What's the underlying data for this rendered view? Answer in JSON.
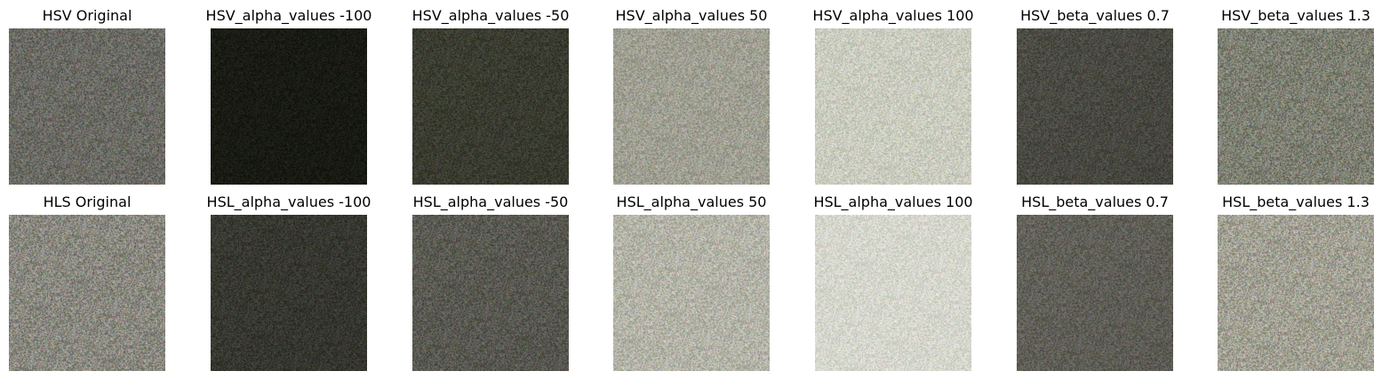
{
  "rows": [
    {
      "panels": [
        {
          "title": "HSV Original",
          "base": [
            107,
            107,
            100
          ],
          "spread": 34,
          "fade": 0.0
        },
        {
          "title": "HSV_alpha_values -100",
          "base": [
            26,
            28,
            20
          ],
          "spread": 14,
          "fade": 0.25
        },
        {
          "title": "HSV_alpha_values -50",
          "base": [
            60,
            62,
            50
          ],
          "spread": 22,
          "fade": 0.2
        },
        {
          "title": "HSV_alpha_values 50",
          "base": [
            160,
            160,
            147
          ],
          "spread": 32,
          "fade": 0.0
        },
        {
          "title": "HSV_alpha_values 100",
          "base": [
            203,
            205,
            192
          ],
          "spread": 28,
          "fade": 0.0
        },
        {
          "title": "HSV_beta_values 0.7",
          "base": [
            77,
            77,
            69
          ],
          "spread": 24,
          "fade": 0.3
        },
        {
          "title": "HSV_beta_values 1.3",
          "base": [
            126,
            128,
            115
          ],
          "spread": 40,
          "fade": 0.0
        }
      ]
    },
    {
      "panels": [
        {
          "title": "HLS Original",
          "base": [
            138,
            137,
            128
          ],
          "spread": 42,
          "fade": 0.0
        },
        {
          "title": "HSL_alpha_values -100",
          "base": [
            57,
            58,
            50
          ],
          "spread": 22,
          "fade": 0.25
        },
        {
          "title": "HSL_alpha_values -50",
          "base": [
            92,
            92,
            84
          ],
          "spread": 30,
          "fade": 0.2
        },
        {
          "title": "HSL_alpha_values 50",
          "base": [
            180,
            180,
            168
          ],
          "spread": 34,
          "fade": 0.0
        },
        {
          "title": "HSL_alpha_values 100",
          "base": [
            214,
            215,
            205
          ],
          "spread": 24,
          "fade": 0.0
        },
        {
          "title": "HSL_beta_values 0.7",
          "base": [
            100,
            99,
            91
          ],
          "spread": 28,
          "fade": 0.25
        },
        {
          "title": "HSL_beta_values 1.3",
          "base": [
            162,
            161,
            148
          ],
          "spread": 42,
          "fade": 0.0
        }
      ]
    }
  ]
}
